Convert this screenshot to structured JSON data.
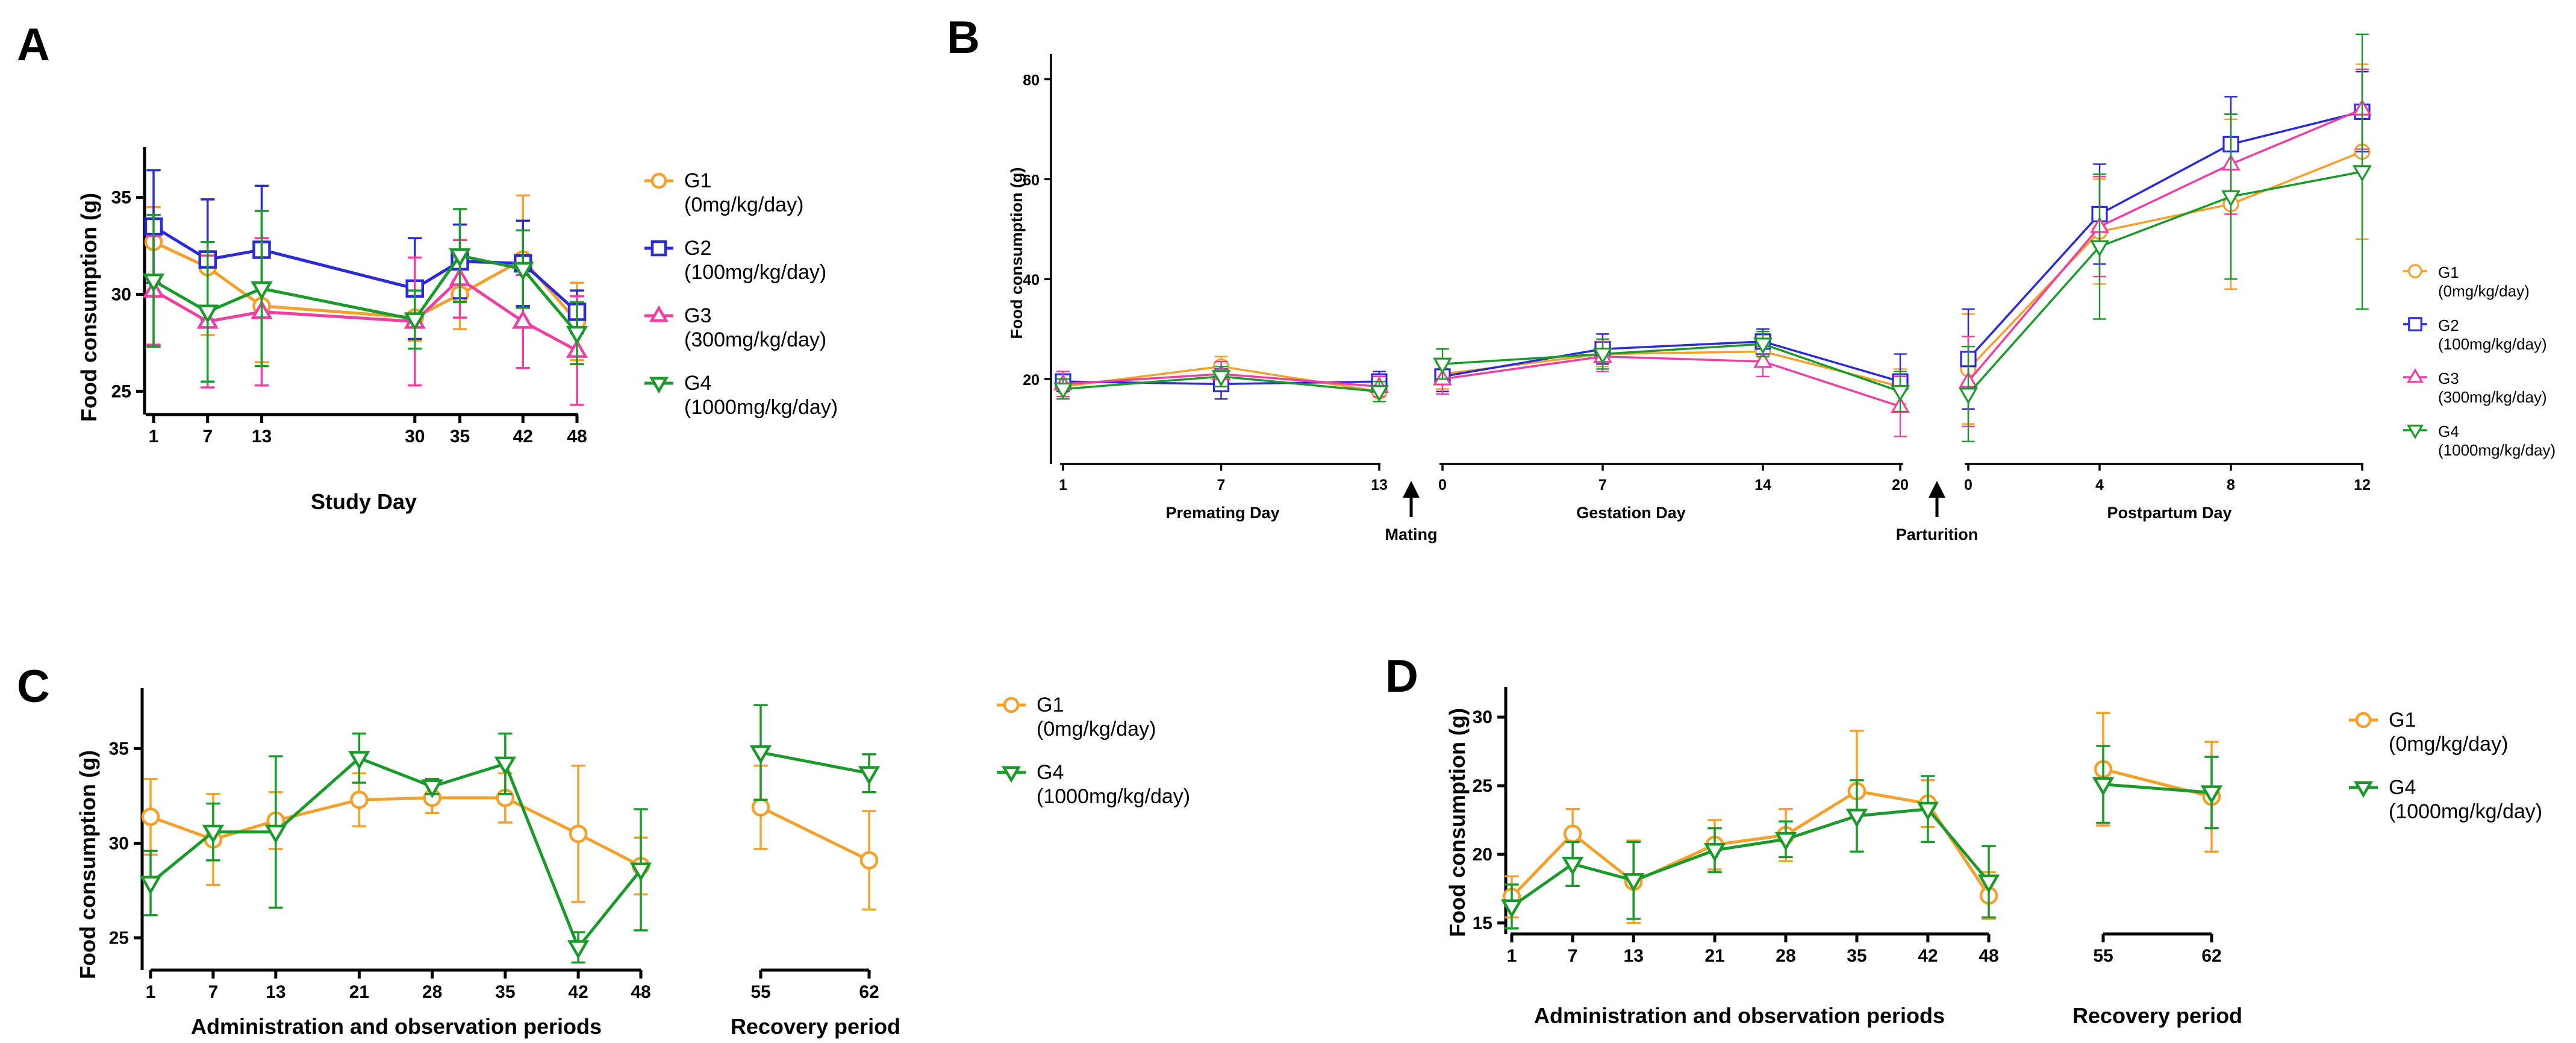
{
  "colors": {
    "G1": "#F5A02A",
    "G2": "#2A2AD8",
    "G3": "#F03FA3",
    "G4": "#1A9A2A"
  },
  "chart_data": [
    {
      "type": "line",
      "panel": "A",
      "ylabel": "Food consumption (g)",
      "xlabel": "Study Day",
      "ylim": [
        23.8,
        37.6
      ],
      "yticks": [
        25,
        30,
        35
      ],
      "x": [
        1,
        7,
        13,
        30,
        35,
        42,
        48
      ],
      "x_tick_labels": [
        "1",
        "7",
        "13",
        "30",
        "35",
        "42",
        "48"
      ],
      "legend": [
        {
          "key": "G1",
          "line1": "G1",
          "line2": "(0mg/kg/day)"
        },
        {
          "key": "G2",
          "line1": "G2",
          "line2": "(100mg/kg/day)"
        },
        {
          "key": "G3",
          "line1": "G3",
          "line2": "(300mg/kg/day)"
        },
        {
          "key": "G4",
          "line1": "G4",
          "line2": "(1000mg/kg/day)"
        }
      ],
      "series": [
        {
          "key": "G1",
          "name": "G1 (0mg/kg/day)",
          "marker": "circle",
          "values": [
            32.7,
            31.4,
            29.4,
            28.8,
            30.0,
            31.8,
            28.6
          ],
          "err": [
            1.8,
            3.5,
            2.9,
            1.2,
            1.8,
            3.3,
            2.0
          ]
        },
        {
          "key": "G2",
          "name": "G2 (100mg/kg/day)",
          "marker": "square",
          "values": [
            33.5,
            31.8,
            32.3,
            30.3,
            31.7,
            31.6,
            29.1
          ],
          "err": [
            2.9,
            3.1,
            3.3,
            2.6,
            1.9,
            2.2,
            1.1
          ]
        },
        {
          "key": "G3",
          "name": "G3 (300mg/kg/day)",
          "marker": "triangle-up",
          "values": [
            30.2,
            28.6,
            29.1,
            28.6,
            30.8,
            28.6,
            27.1
          ],
          "err": [
            2.8,
            3.4,
            3.8,
            3.3,
            2.0,
            2.4,
            2.8
          ]
        },
        {
          "key": "G4",
          "name": "G4 (1000mg/kg/day)",
          "marker": "triangle-down",
          "values": [
            30.7,
            29.1,
            30.3,
            28.7,
            32.0,
            31.3,
            28.0
          ],
          "err": [
            3.4,
            3.6,
            4.0,
            1.5,
            2.4,
            2.0,
            1.6
          ]
        }
      ]
    },
    {
      "type": "line",
      "panel": "B",
      "ylabel": "Food consumption (g)",
      "ylim": [
        3,
        85
      ],
      "yticks": [
        20,
        40,
        60,
        80
      ],
      "legend": [
        {
          "key": "G1",
          "line1": "G1",
          "line2": "(0mg/kg/day)"
        },
        {
          "key": "G2",
          "line1": "G2",
          "line2": "(100mg/kg/day)"
        },
        {
          "key": "G3",
          "line1": "G3",
          "line2": "(300mg/kg/day)"
        },
        {
          "key": "G4",
          "line1": "G4",
          "line2": "(1000mg/kg/day)"
        }
      ],
      "annotations": [
        "Mating",
        "Parturition"
      ],
      "segments": [
        {
          "label": "Premating Day",
          "x": [
            1,
            7,
            13
          ],
          "xlim": [
            1,
            13
          ],
          "x_tick_labels": [
            "1",
            "7",
            "13"
          ],
          "series": [
            {
              "key": "G1",
              "marker": "circle",
              "values": [
                18.5,
                22.5,
                17.5
              ],
              "err": [
                2.0,
                2.0,
                2.0
              ]
            },
            {
              "key": "G2",
              "marker": "square",
              "values": [
                19.5,
                19.0,
                19.5
              ],
              "err": [
                2.0,
                3.0,
                2.0
              ]
            },
            {
              "key": "G3",
              "marker": "triangle-up",
              "values": [
                19.0,
                21.0,
                18.5
              ],
              "err": [
                2.5,
                2.5,
                2.0
              ]
            },
            {
              "key": "G4",
              "marker": "triangle-down",
              "values": [
                18.0,
                20.5,
                17.5
              ],
              "err": [
                2.0,
                2.0,
                2.0
              ]
            }
          ]
        },
        {
          "label": "Gestation Day",
          "x": [
            0,
            7,
            14,
            20
          ],
          "xlim": [
            0,
            20
          ],
          "x_tick_labels": [
            "0",
            "7",
            "14",
            "20"
          ],
          "series": [
            {
              "key": "G1",
              "marker": "circle",
              "values": [
                21.0,
                25.0,
                25.5,
                18.5
              ],
              "err": [
                3.0,
                2.5,
                3.0,
                3.5
              ]
            },
            {
              "key": "G2",
              "marker": "square",
              "values": [
                20.5,
                26.0,
                27.5,
                19.5
              ],
              "err": [
                3.0,
                3.0,
                2.5,
                5.5
              ]
            },
            {
              "key": "G3",
              "marker": "triangle-up",
              "values": [
                20.0,
                24.5,
                23.5,
                14.5
              ],
              "err": [
                3.0,
                3.0,
                3.0,
                6.0
              ]
            },
            {
              "key": "G4",
              "marker": "triangle-down",
              "values": [
                23.0,
                25.0,
                27.0,
                17.5
              ],
              "err": [
                3.0,
                3.0,
                2.5,
                4.0
              ]
            }
          ]
        },
        {
          "label": "Postpartum Day",
          "x": [
            0,
            4,
            8,
            12
          ],
          "xlim": [
            0,
            12
          ],
          "x_tick_labels": [
            "0",
            "4",
            "8",
            "12"
          ],
          "series": [
            {
              "key": "G1",
              "marker": "circle",
              "values": [
                22.0,
                49.5,
                55.0,
                65.5
              ],
              "err": [
                11.0,
                10.5,
                17.0,
                17.5
              ]
            },
            {
              "key": "G2",
              "marker": "square",
              "values": [
                24.0,
                53.0,
                67.0,
                73.5
              ],
              "err": [
                10.0,
                10.0,
                9.5,
                8.0
              ]
            },
            {
              "key": "G3",
              "marker": "triangle-up",
              "values": [
                19.5,
                50.5,
                63.0,
                74.0
              ],
              "err": [
                9.0,
                10.0,
                10.0,
                8.0
              ]
            },
            {
              "key": "G4",
              "marker": "triangle-down",
              "values": [
                17.0,
                46.5,
                56.5,
                61.5
              ],
              "err": [
                9.5,
                14.5,
                16.5,
                27.5
              ]
            }
          ]
        }
      ]
    },
    {
      "type": "line",
      "panel": "C",
      "ylabel": "Food consumption (g)",
      "ylim": [
        23.3,
        38.2
      ],
      "yticks": [
        25,
        30,
        35
      ],
      "legend": [
        {
          "key": "G1",
          "line1": "G1",
          "line2": "(0mg/kg/day)"
        },
        {
          "key": "G4",
          "line1": "G4",
          "line2": "(1000mg/kg/day)"
        }
      ],
      "segments": [
        {
          "label": "Administration and observation periods",
          "x": [
            1,
            7,
            13,
            21,
            28,
            35,
            42,
            48
          ],
          "xlim": [
            1,
            48
          ],
          "x_tick_labels": [
            "1",
            "7",
            "13",
            "21",
            "28",
            "35",
            "42",
            "48"
          ],
          "series": [
            {
              "key": "G1",
              "name": "G1 (0mg/kg/day)",
              "marker": "circle",
              "values": [
                31.4,
                30.2,
                31.2,
                32.3,
                32.4,
                32.4,
                30.5,
                28.8
              ],
              "err": [
                2.0,
                2.4,
                1.5,
                1.4,
                0.8,
                1.3,
                3.6,
                1.5
              ]
            },
            {
              "key": "G4",
              "name": "G4 (1000mg/kg/day)",
              "marker": "triangle-down",
              "values": [
                27.9,
                30.6,
                30.6,
                34.5,
                33.0,
                34.2,
                24.5,
                28.6
              ],
              "err": [
                1.7,
                1.5,
                4.0,
                1.3,
                0.4,
                1.6,
                0.8,
                3.2
              ]
            }
          ]
        },
        {
          "label": "Recovery period",
          "x": [
            55,
            62
          ],
          "xlim": [
            55,
            62
          ],
          "x_tick_labels": [
            "55",
            "62"
          ],
          "series": [
            {
              "key": "G1",
              "marker": "circle",
              "values": [
                31.9,
                29.1
              ],
              "err": [
                2.2,
                2.6
              ]
            },
            {
              "key": "G4",
              "marker": "triangle-down",
              "values": [
                34.8,
                33.7
              ],
              "err": [
                2.5,
                1.0
              ]
            }
          ]
        }
      ]
    },
    {
      "type": "line",
      "panel": "D",
      "ylabel": "Food consumption (g)",
      "ylim": [
        14.2,
        32.2
      ],
      "yticks": [
        15,
        20,
        25,
        30
      ],
      "legend": [
        {
          "key": "G1",
          "line1": "G1",
          "line2": "(0mg/kg/day)"
        },
        {
          "key": "G4",
          "line1": "G4",
          "line2": "(1000mg/kg/day)"
        }
      ],
      "segments": [
        {
          "label": "Administration and observation periods",
          "x": [
            1,
            7,
            13,
            21,
            28,
            35,
            42,
            48
          ],
          "xlim": [
            1,
            48
          ],
          "x_tick_labels": [
            "1",
            "7",
            "13",
            "21",
            "28",
            "35",
            "42",
            "48"
          ],
          "series": [
            {
              "key": "G1",
              "name": "G1 (0mg/kg/day)",
              "marker": "circle",
              "values": [
                16.9,
                21.5,
                18.0,
                20.7,
                21.4,
                24.6,
                23.7,
                17.0
              ],
              "err": [
                1.5,
                1.8,
                3.0,
                1.8,
                1.9,
                4.4,
                1.7,
                1.7
              ]
            },
            {
              "key": "G4",
              "name": "G4 (1000mg/kg/day)",
              "marker": "triangle-down",
              "values": [
                16.2,
                19.3,
                18.1,
                20.3,
                21.1,
                22.8,
                23.3,
                18.0
              ],
              "err": [
                1.6,
                1.6,
                2.8,
                1.6,
                1.3,
                2.6,
                2.4,
                2.6
              ]
            }
          ]
        },
        {
          "label": "Recovery period",
          "x": [
            55,
            62
          ],
          "xlim": [
            55,
            62
          ],
          "x_tick_labels": [
            "55",
            "62"
          ],
          "series": [
            {
              "key": "G1",
              "marker": "circle",
              "values": [
                26.2,
                24.2
              ],
              "err": [
                4.1,
                4.0
              ]
            },
            {
              "key": "G4",
              "marker": "triangle-down",
              "values": [
                25.1,
                24.5
              ],
              "err": [
                2.8,
                2.6
              ]
            }
          ]
        }
      ]
    }
  ]
}
